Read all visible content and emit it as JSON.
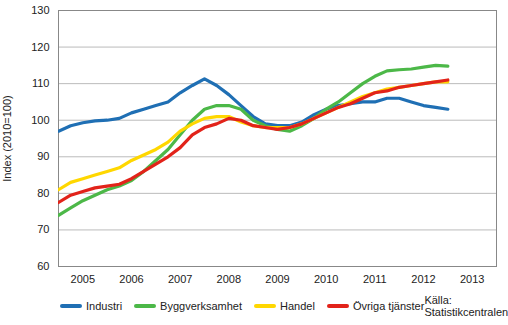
{
  "chart_data": {
    "type": "line",
    "y_label": "Index (2010=100)",
    "caption": "Källa: Statistikcentralen",
    "x": [
      2005,
      2005.25,
      2005.5,
      2005.75,
      2006,
      2006.25,
      2006.5,
      2006.75,
      2007,
      2007.25,
      2007.5,
      2007.75,
      2008,
      2008.25,
      2008.5,
      2008.75,
      2009,
      2009.25,
      2009.5,
      2009.75,
      2010,
      2010.25,
      2010.5,
      2010.75,
      2011,
      2011.25,
      2011.5,
      2011.75,
      2012,
      2012.25,
      2012.5,
      2012.75,
      2013
    ],
    "series": [
      {
        "name": "Industri",
        "color": "#1f6fb4",
        "values": [
          97,
          98.5,
          99.3,
          99.8,
          100,
          100.5,
          102,
          103,
          104,
          105,
          107.5,
          109.5,
          111.3,
          109.5,
          107,
          104,
          101,
          99,
          98.5,
          98.5,
          99.5,
          101.5,
          103,
          104,
          104.5,
          105,
          105,
          106,
          106,
          105,
          104,
          103.5,
          103
        ]
      },
      {
        "name": "Byggverksamhet",
        "color": "#4cb848",
        "values": [
          74,
          76,
          78,
          79.5,
          81,
          82,
          83.5,
          86,
          89,
          92,
          96,
          100,
          103,
          104,
          104,
          103,
          100,
          98.5,
          97.5,
          97,
          98.5,
          100.5,
          103,
          105,
          107.5,
          110,
          112,
          113.5,
          113.8,
          114,
          114.5,
          115,
          114.8
        ]
      },
      {
        "name": "Handel",
        "color": "#ffd700",
        "values": [
          81,
          83,
          84,
          85,
          86,
          87,
          89,
          90.5,
          92,
          94,
          97,
          99,
          100.5,
          101,
          101,
          99.5,
          98.5,
          98,
          98,
          98,
          99,
          100.5,
          102,
          103.5,
          105,
          106.5,
          107.5,
          108.5,
          109,
          109.5,
          110,
          110.5,
          110.5
        ]
      },
      {
        "name": "Övriga tjänster",
        "color": "#e2231a",
        "values": [
          77.5,
          79.5,
          80.5,
          81.5,
          82,
          82.5,
          84,
          86,
          88,
          90,
          92.5,
          96,
          98,
          99,
          100.5,
          100,
          98.5,
          98,
          97.5,
          98,
          99,
          100.5,
          102,
          103.5,
          104.5,
          106,
          107.5,
          108,
          109,
          109.5,
          110,
          110.5,
          111
        ]
      }
    ],
    "xlim": [
      2005,
      2014
    ],
    "xticks": [
      {
        "value": 2005.5,
        "label": "2005"
      },
      {
        "value": 2006.5,
        "label": "2006"
      },
      {
        "value": 2007.5,
        "label": "2007"
      },
      {
        "value": 2008.5,
        "label": "2008"
      },
      {
        "value": 2009.5,
        "label": "2009"
      },
      {
        "value": 2010.5,
        "label": "2010"
      },
      {
        "value": 2011.5,
        "label": "2011"
      },
      {
        "value": 2012.5,
        "label": "2012"
      },
      {
        "value": 2013.5,
        "label": "2013"
      }
    ],
    "ylim": [
      60,
      130
    ],
    "yticks": [
      60,
      70,
      80,
      90,
      100,
      110,
      120,
      130
    ],
    "grid": true,
    "legend": "bottom"
  }
}
